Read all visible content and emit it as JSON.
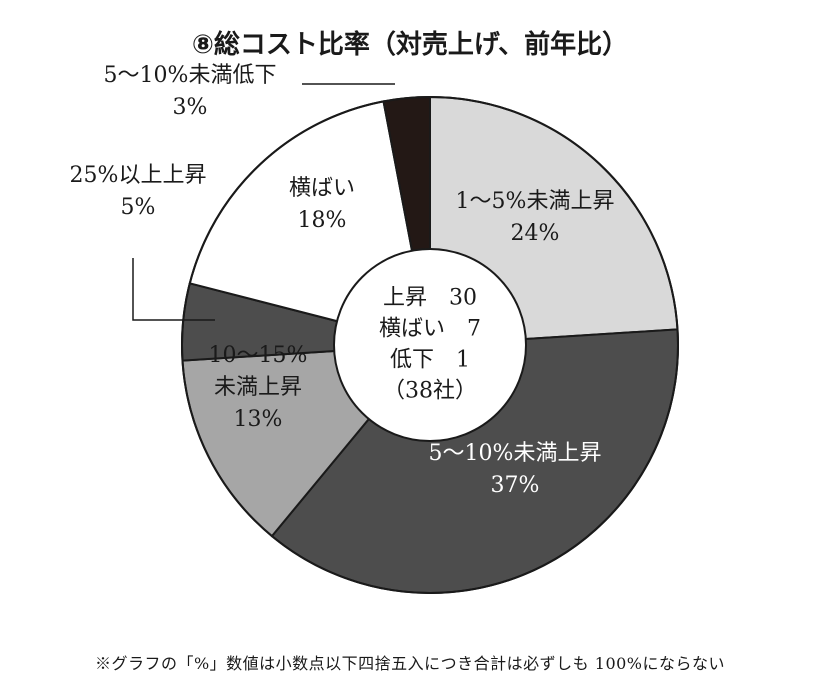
{
  "chart_data": {
    "type": "pie",
    "variant": "donut",
    "title": "⑧総コスト比率（対売上げ、前年比）",
    "slices": [
      {
        "label_lines": [
          "1～5%未満上昇",
          "24%"
        ],
        "value": 24,
        "color": "#d9d9d9",
        "text_color": "#1a1a1a",
        "callout": false
      },
      {
        "label_lines": [
          "5～10%未満上昇",
          "37%"
        ],
        "value": 37,
        "color": "#4d4d4d",
        "text_color": "#ffffff",
        "callout": false
      },
      {
        "label_lines": [
          "10～15%",
          "未満上昇",
          "13%"
        ],
        "value": 13,
        "color": "#a6a6a6",
        "text_color": "#1a1a1a",
        "callout": false
      },
      {
        "label_lines": [
          "25%以上上昇",
          "5%"
        ],
        "value": 5,
        "color": "#4d4d4d",
        "text_color": "#1a1a1a",
        "callout": true
      },
      {
        "label_lines": [
          "横ばい",
          "18%"
        ],
        "value": 18,
        "color": "#ffffff",
        "text_color": "#1a1a1a",
        "callout": false
      },
      {
        "label_lines": [
          "5～10%未満低下",
          "3%"
        ],
        "value": 3,
        "color": "#231815",
        "text_color": "#1a1a1a",
        "callout": true
      }
    ],
    "center_text": [
      "上昇　30",
      "横ばい　7",
      "低下　1",
      "（38社）"
    ]
  },
  "footnote": "※グラフの「%」数値は小数点以下四捨五入につき合計は必ずしも 100%にならない"
}
